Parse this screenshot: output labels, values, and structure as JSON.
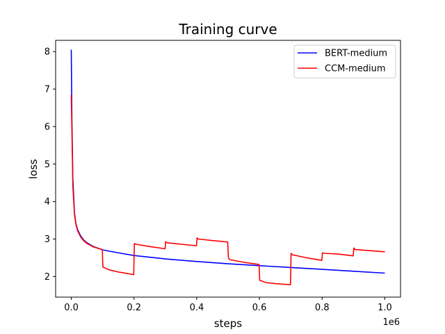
{
  "chart_data": {
    "type": "line",
    "title": "Training curve",
    "xlabel": "steps",
    "ylabel": "loss",
    "x_offset_label": "1e6",
    "xlim": [
      -0.05,
      1.05
    ],
    "ylim": [
      1.45,
      8.3
    ],
    "x_ticks": [
      0.0,
      0.2,
      0.4,
      0.6,
      0.8,
      1.0
    ],
    "x_tick_labels": [
      "0.0",
      "0.2",
      "0.4",
      "0.6",
      "0.8",
      "1.0"
    ],
    "y_ticks": [
      2,
      3,
      4,
      5,
      6,
      7,
      8
    ],
    "y_tick_labels": [
      "2",
      "3",
      "4",
      "5",
      "6",
      "7",
      "8"
    ],
    "legend_position": "top-right",
    "series": [
      {
        "name": "BERT-medium",
        "color": "#0000ff",
        "x": [
          0.0,
          0.002,
          0.005,
          0.01,
          0.015,
          0.02,
          0.03,
          0.04,
          0.05,
          0.07,
          0.1,
          0.15,
          0.2,
          0.3,
          0.4,
          0.5,
          0.6,
          0.7,
          0.8,
          0.9,
          1.0
        ],
        "y": [
          8.05,
          6.2,
          4.6,
          3.7,
          3.4,
          3.25,
          3.08,
          2.97,
          2.9,
          2.8,
          2.71,
          2.63,
          2.56,
          2.47,
          2.4,
          2.34,
          2.29,
          2.24,
          2.19,
          2.14,
          2.09
        ]
      },
      {
        "name": "CCM-medium",
        "color": "#ff0000",
        "x": [
          0.0,
          0.002,
          0.005,
          0.01,
          0.015,
          0.02,
          0.03,
          0.04,
          0.05,
          0.07,
          0.099,
          0.1,
          0.101,
          0.12,
          0.15,
          0.18,
          0.199,
          0.2,
          0.201,
          0.205,
          0.25,
          0.299,
          0.3,
          0.301,
          0.305,
          0.35,
          0.399,
          0.4,
          0.401,
          0.405,
          0.45,
          0.499,
          0.5,
          0.501,
          0.505,
          0.55,
          0.599,
          0.6,
          0.601,
          0.62,
          0.65,
          0.699,
          0.7,
          0.701,
          0.705,
          0.75,
          0.799,
          0.8,
          0.801,
          0.805,
          0.85,
          0.899,
          0.9,
          0.901,
          0.905,
          0.95,
          1.0
        ],
        "y": [
          6.85,
          5.9,
          4.4,
          3.65,
          3.38,
          3.22,
          3.05,
          2.95,
          2.88,
          2.79,
          2.72,
          2.45,
          2.25,
          2.18,
          2.12,
          2.08,
          2.05,
          2.4,
          2.88,
          2.86,
          2.8,
          2.74,
          2.82,
          2.93,
          2.9,
          2.86,
          2.82,
          2.9,
          3.03,
          3.0,
          2.96,
          2.92,
          2.7,
          2.5,
          2.45,
          2.38,
          2.32,
          2.1,
          1.9,
          1.84,
          1.81,
          1.78,
          2.2,
          2.62,
          2.58,
          2.5,
          2.43,
          2.52,
          2.63,
          2.62,
          2.6,
          2.55,
          2.65,
          2.76,
          2.72,
          2.69,
          2.66
        ]
      }
    ]
  }
}
